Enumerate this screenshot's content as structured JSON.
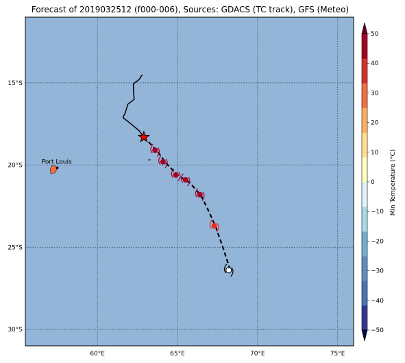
{
  "title": "Forecast of 2019032512 (f000-006), Sources: GDACS (TC track), GFS (Meteo)",
  "map": {
    "lon_range": [
      55.5,
      76
    ],
    "lat_range": [
      -31,
      -11
    ],
    "ocean_color": "#92b5d8",
    "lon_ticks": [
      {
        "value": 60,
        "label": "60°E"
      },
      {
        "value": 65,
        "label": "65°E"
      },
      {
        "value": 70,
        "label": "70°E"
      },
      {
        "value": 75,
        "label": "75°E"
      }
    ],
    "lat_ticks": [
      {
        "value": -15,
        "label": "15°S"
      },
      {
        "value": -20,
        "label": "20°S"
      },
      {
        "value": -25,
        "label": "25°S"
      },
      {
        "value": -30,
        "label": "30°S"
      }
    ],
    "grid": true
  },
  "places": [
    {
      "name": "Port Louis",
      "lon": 57.5,
      "lat": -20.16
    }
  ],
  "tc_track": {
    "past": [
      [
        62.8,
        -14.5
      ],
      [
        62.6,
        -14.8
      ],
      [
        62.25,
        -15.05
      ],
      [
        62.25,
        -15.5
      ],
      [
        62.3,
        -16.0
      ],
      [
        61.9,
        -16.3
      ],
      [
        61.75,
        -16.8
      ],
      [
        61.6,
        -17.1
      ],
      [
        61.65,
        -17.15
      ],
      [
        62.1,
        -17.5
      ],
      [
        62.6,
        -17.9
      ],
      [
        62.9,
        -18.3
      ]
    ],
    "forecast": [
      [
        62.9,
        -18.3
      ],
      [
        63.7,
        -19.1
      ],
      [
        64.3,
        -19.9
      ],
      [
        65.0,
        -20.6
      ],
      [
        65.8,
        -21.1
      ],
      [
        66.5,
        -21.9
      ],
      [
        67.0,
        -22.9
      ],
      [
        67.4,
        -23.8
      ],
      [
        67.8,
        -24.9
      ],
      [
        68.3,
        -26.4
      ]
    ],
    "current_position": {
      "lon": 62.9,
      "lat": -18.3,
      "color": "#ff0000"
    },
    "forecast_symbols": [
      {
        "lon": 63.6,
        "lat": -19.1,
        "color": "#a50026"
      },
      {
        "lon": 64.1,
        "lat": -19.8,
        "color": "#a50026"
      },
      {
        "lon": 64.9,
        "lat": -20.6,
        "color": "#a50026"
      },
      {
        "lon": 65.5,
        "lat": -20.9,
        "color": "#a50026"
      },
      {
        "lon": 66.4,
        "lat": -21.8,
        "color": "#a50026"
      },
      {
        "lon": 67.3,
        "lat": -23.7,
        "color": "#f0281e"
      },
      {
        "lon": 68.2,
        "lat": -26.4,
        "color": "#ffffff"
      }
    ]
  },
  "colorbar": {
    "label": "Min Temperature (°C)",
    "min": -50,
    "max": 50,
    "ticks": [
      50,
      40,
      30,
      20,
      10,
      0,
      -10,
      -20,
      -30,
      -40,
      -50
    ],
    "tick_labels": [
      "50",
      "40",
      "30",
      "20",
      "10",
      "0",
      "−10",
      "−20",
      "−30",
      "−40",
      "−50"
    ],
    "colors": [
      "#313695",
      "#4575b4",
      "#5b8fc3",
      "#74add1",
      "#abd9e9",
      "#e0f3f8",
      "#ffffbf",
      "#fee090",
      "#fdae61",
      "#f46d43",
      "#d73027",
      "#a50026"
    ]
  }
}
